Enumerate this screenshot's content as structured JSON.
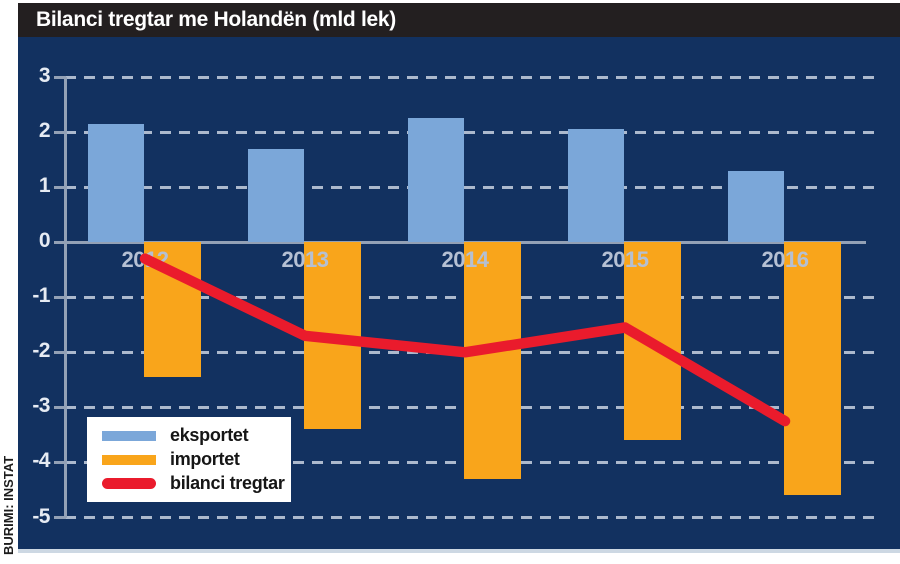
{
  "header": {
    "title": "Bilanci tregtar me Holandën (mld lek)"
  },
  "chart_data": {
    "type": "bar",
    "title": "Bilanci tregtar me Holandën (mld lek)",
    "subtitle": "",
    "categories": [
      "2012",
      "2013",
      "2014",
      "2015",
      "2016"
    ],
    "series": [
      {
        "name": "eksportet",
        "type": "bar",
        "color": "#7BA7D9",
        "values": [
          2.15,
          1.7,
          2.25,
          2.05,
          1.3
        ]
      },
      {
        "name": "importet",
        "type": "bar",
        "color": "#F9A51B",
        "values": [
          -2.45,
          -3.4,
          -4.3,
          -3.6,
          -4.6
        ]
      },
      {
        "name": "bilanci tregtar",
        "type": "line",
        "color": "#EA1B2C",
        "values": [
          -0.3,
          -1.7,
          -2.0,
          -1.55,
          -3.25
        ]
      }
    ],
    "xlabel": "",
    "ylabel": "",
    "ylim": [
      -5,
      3
    ],
    "yticks": [
      3,
      2,
      1,
      0,
      -1,
      -2,
      -3,
      -4,
      -5
    ],
    "grid": true,
    "grid_style": "dashed",
    "legend_position": "bottom-left",
    "source": "BURIMI: INSTAT",
    "unit": "mld lek"
  },
  "colors": {
    "background": "#FFFFFF",
    "title_bar": "#231F20",
    "title_text": "#FFFFFF",
    "panel": "#123160",
    "panel_bottom_edge": "#CDD8E3",
    "axis": "#93A1B6",
    "gridline": "#C7D1E0",
    "year_label": "#B5C0D3",
    "tick_label": "#E6EBF3",
    "legend_bg": "#FFFFFF",
    "legend_text": "#161616"
  }
}
